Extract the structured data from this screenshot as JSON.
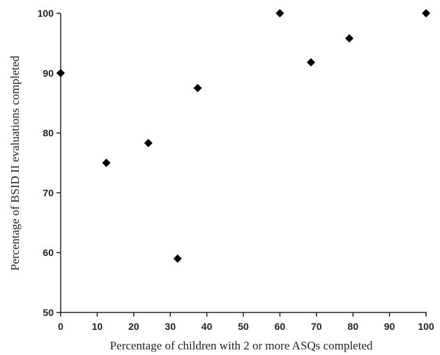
{
  "chart_data": {
    "type": "scatter",
    "title": "",
    "xlabel": "Percentage of children with 2 or more ASQs completed",
    "ylabel": "Percentage of BSID II  evaluations  completed",
    "xlim": [
      0,
      100
    ],
    "ylim": [
      50,
      100
    ],
    "xticks": [
      "0",
      "10",
      "20",
      "30",
      "40",
      "50",
      "60",
      "70",
      "80",
      "90",
      "100"
    ],
    "yticks": [
      "50",
      "60",
      "70",
      "80",
      "90",
      "100"
    ],
    "marker": "diamond",
    "marker_color": "#000000",
    "grid": false,
    "points": [
      {
        "x": 0,
        "y": 90
      },
      {
        "x": 12.5,
        "y": 75
      },
      {
        "x": 24,
        "y": 78.3
      },
      {
        "x": 32,
        "y": 59
      },
      {
        "x": 37.5,
        "y": 87.5
      },
      {
        "x": 60,
        "y": 100
      },
      {
        "x": 68.5,
        "y": 91.8
      },
      {
        "x": 79,
        "y": 95.8
      },
      {
        "x": 100,
        "y": 100
      }
    ]
  }
}
